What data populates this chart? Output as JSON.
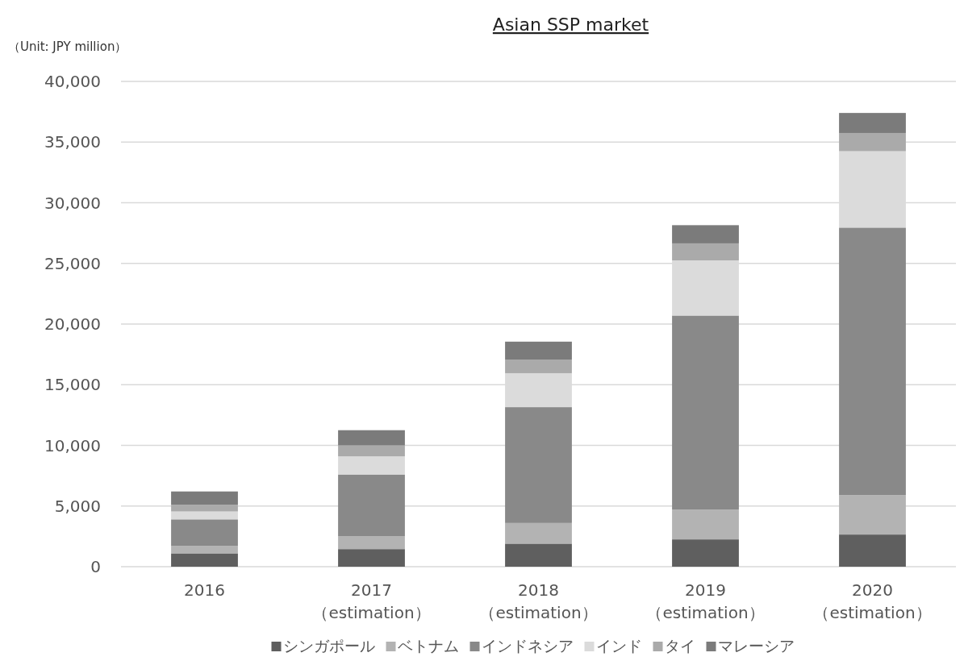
{
  "chart_data": {
    "type": "bar",
    "title": "Asian SSP market",
    "ylabel": "（Unit: JPY million）",
    "stacked": true,
    "grid": "y",
    "legend": "bottom",
    "categories": [
      "2016",
      "2017\n（estimation）",
      "2018\n（estimation）",
      "2019\n（estimation）",
      "2020\n（estimation）"
    ],
    "ylim": [
      0,
      40000
    ],
    "yticks": [
      {
        "value": 0,
        "label": "0"
      },
      {
        "value": 5000,
        "label": "5,000"
      },
      {
        "value": 10000,
        "label": "10,000"
      },
      {
        "value": 15000,
        "label": "15,000"
      },
      {
        "value": 20000,
        "label": "20,000"
      },
      {
        "value": 25000,
        "label": "25,000"
      },
      {
        "value": 30000,
        "label": "30,000"
      },
      {
        "value": 35000,
        "label": "35,000"
      },
      {
        "value": 40000,
        "label": "40,000"
      }
    ],
    "series": [
      {
        "name": "シンガポール",
        "color": "#5f5f5f",
        "values": [
          1100,
          1450,
          1900,
          2250,
          2650
        ]
      },
      {
        "name": "ベトナム",
        "color": "#b3b3b3",
        "values": [
          600,
          1050,
          1700,
          2450,
          3250
        ]
      },
      {
        "name": "インドネシア",
        "color": "#898989",
        "values": [
          2200,
          5100,
          9550,
          16000,
          22050
        ]
      },
      {
        "name": "インド",
        "color": "#dbdbdb",
        "values": [
          650,
          1500,
          2800,
          4550,
          6300
        ]
      },
      {
        "name": "タイ",
        "color": "#aaaaaa",
        "values": [
          550,
          900,
          1100,
          1400,
          1500
        ]
      },
      {
        "name": "マレーシア",
        "color": "#7b7b7b",
        "values": [
          1100,
          1250,
          1500,
          1500,
          1650
        ]
      }
    ]
  }
}
